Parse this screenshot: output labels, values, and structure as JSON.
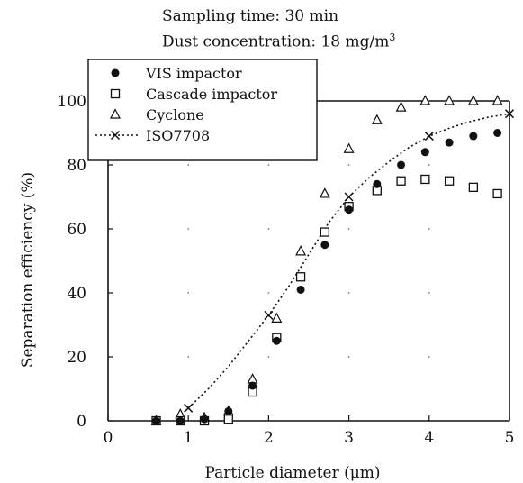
{
  "header": {
    "line1": "Sampling time: 30 min",
    "line2_prefix": "Dust concentration: 18 mg/m",
    "line2_sup": "3"
  },
  "chart_data": {
    "type": "scatter",
    "xlabel": "Particle diameter (μm)",
    "ylabel": "Separation efficiency (%)",
    "xlim": [
      0,
      5
    ],
    "ylim": [
      0,
      100
    ],
    "xticks": [
      0,
      1,
      2,
      3,
      4,
      5
    ],
    "yticks": [
      0,
      20,
      40,
      60,
      80,
      100
    ],
    "legend_position": "top-left",
    "series": [
      {
        "name": "VIS impactor",
        "marker": "filled-circle",
        "x": [
          0.6,
          0.9,
          1.2,
          1.5,
          1.8,
          2.1,
          2.4,
          2.7,
          3.0,
          3.35,
          3.65,
          3.95,
          4.25,
          4.55,
          4.85
        ],
        "y": [
          0,
          0,
          0.5,
          3,
          11,
          25,
          41,
          55,
          66,
          74,
          80,
          84,
          87,
          89,
          90
        ]
      },
      {
        "name": "Cascade impactor",
        "marker": "open-square",
        "x": [
          0.6,
          0.9,
          1.2,
          1.5,
          1.8,
          2.1,
          2.4,
          2.7,
          3.0,
          3.35,
          3.65,
          3.95,
          4.25,
          4.55,
          4.85
        ],
        "y": [
          0,
          0,
          0,
          0.5,
          9,
          26,
          45,
          59,
          67,
          72,
          75,
          75.5,
          75,
          73,
          71
        ]
      },
      {
        "name": "Cyclone",
        "marker": "open-triangle",
        "x": [
          0.6,
          0.9,
          1.2,
          1.5,
          1.8,
          2.1,
          2.4,
          2.7,
          3.0,
          3.35,
          3.65,
          3.95,
          4.25,
          4.55,
          4.85
        ],
        "y": [
          0,
          2,
          1,
          3,
          13,
          32,
          53,
          71,
          85,
          94,
          98,
          100,
          100,
          100,
          100
        ]
      },
      {
        "name": "ISO7708",
        "marker": "x",
        "line": "dotted",
        "x": [
          1.0,
          2.0,
          3.0,
          4.0,
          5.0
        ],
        "y": [
          4,
          33,
          70,
          89,
          96
        ],
        "curve_x": [
          1.0,
          1.25,
          1.5,
          1.75,
          2.0,
          2.25,
          2.5,
          2.75,
          3.0,
          3.25,
          3.5,
          3.75,
          4.0,
          4.25,
          4.5,
          4.75,
          5.0
        ],
        "curve_y": [
          4,
          10,
          17,
          25,
          33,
          42,
          52,
          62,
          70,
          76,
          81,
          85.5,
          89,
          91.5,
          93.5,
          95,
          96
        ]
      }
    ]
  }
}
